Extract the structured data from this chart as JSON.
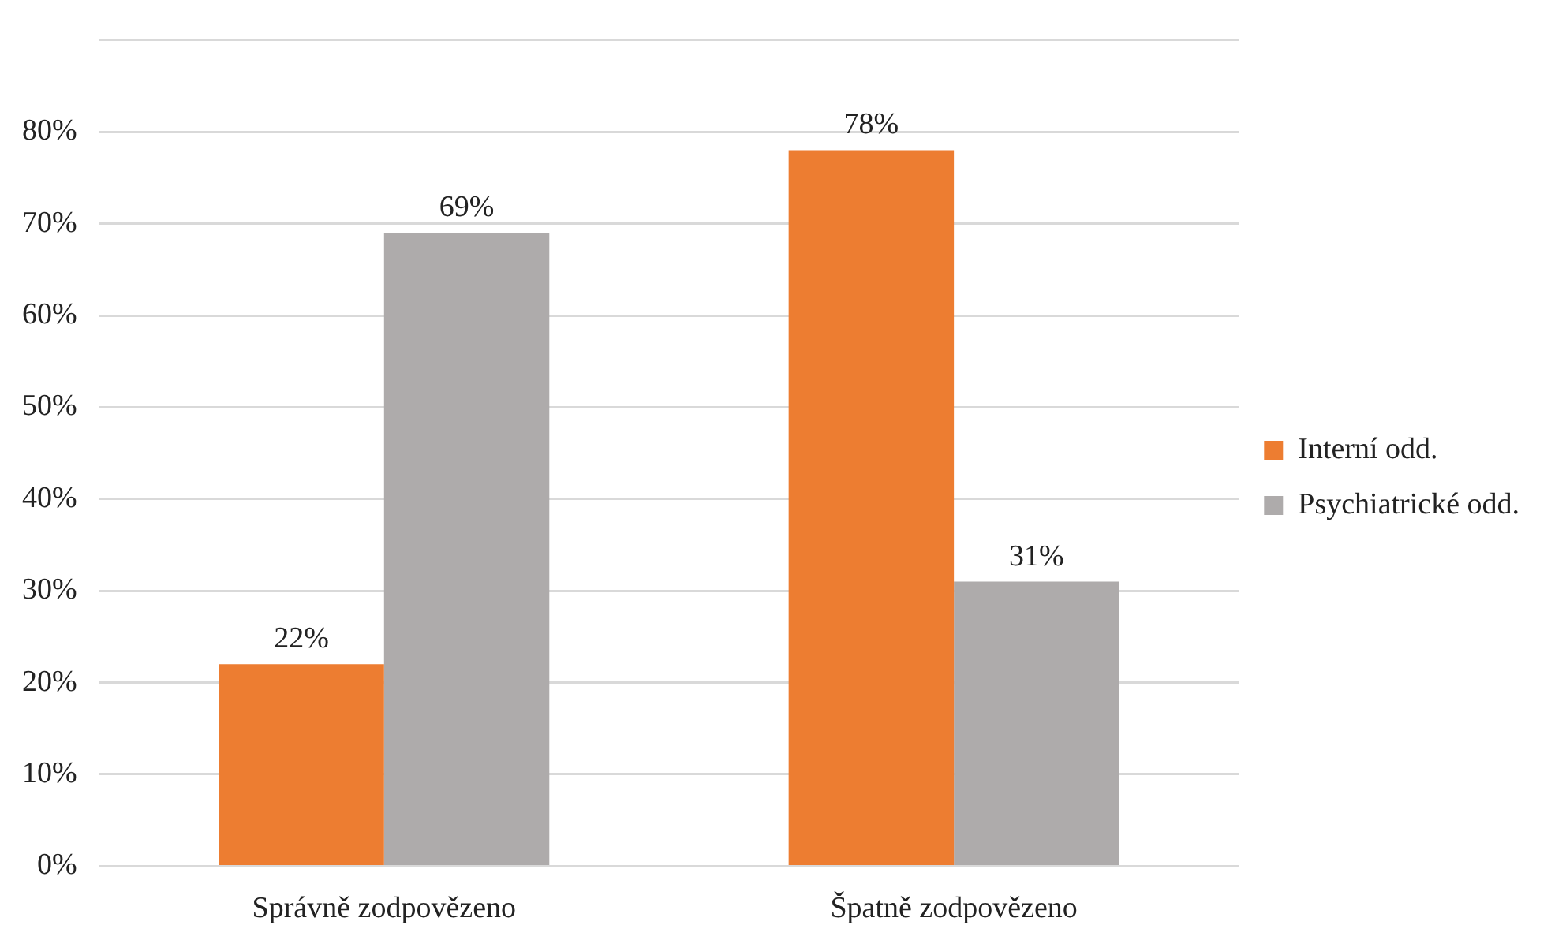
{
  "chart_data": {
    "type": "bar",
    "categories": [
      "Správně zodpovězeno",
      "Špatně zodpovězeno"
    ],
    "series": [
      {
        "name": "Interní odd.",
        "color": "#ed7d31",
        "values": [
          22,
          78
        ],
        "value_labels": [
          "22%",
          "78%"
        ]
      },
      {
        "name": "Psychiatrické odd.",
        "color": "#aeabab",
        "values": [
          69,
          31
        ],
        "value_labels": [
          "69%",
          "31%"
        ]
      }
    ],
    "ylim": [
      0,
      90
    ],
    "yticks": [
      {
        "value": 0,
        "label": "0%"
      },
      {
        "value": 10,
        "label": "10%"
      },
      {
        "value": 20,
        "label": "20%"
      },
      {
        "value": 30,
        "label": "30%"
      },
      {
        "value": 40,
        "label": "40%"
      },
      {
        "value": 50,
        "label": "50%"
      },
      {
        "value": 60,
        "label": "60%"
      },
      {
        "value": 70,
        "label": "70%"
      },
      {
        "value": 80,
        "label": "80%"
      },
      {
        "value": 90,
        "label": null
      }
    ],
    "grid": "y",
    "legend": "right"
  }
}
